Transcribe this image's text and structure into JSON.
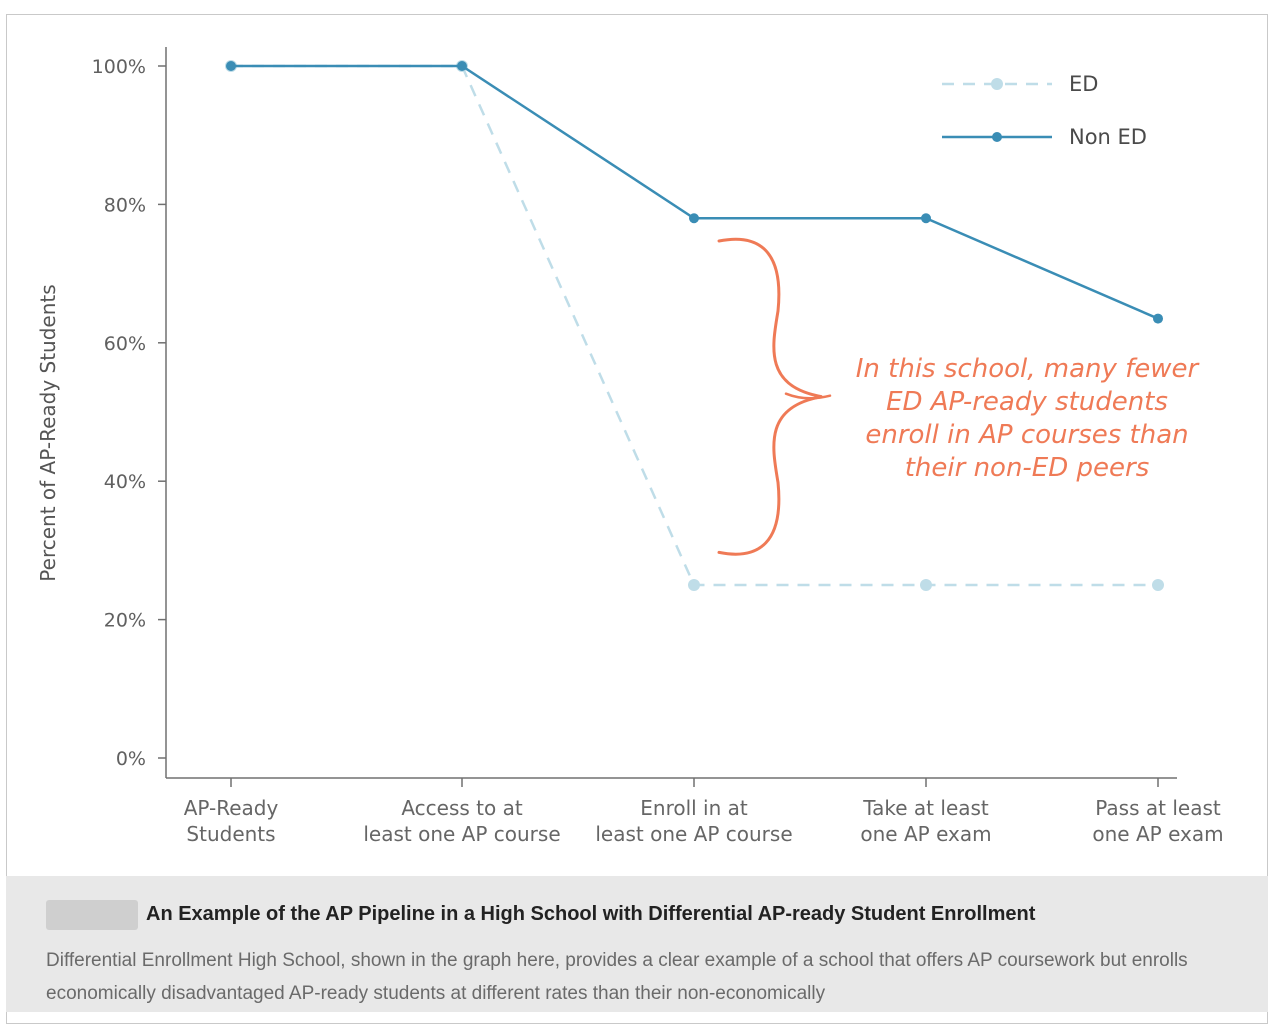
{
  "chart_data": {
    "type": "line",
    "categories": [
      [
        "AP-Ready",
        "Students"
      ],
      [
        "Access to at",
        "least one AP course"
      ],
      [
        "Enroll in at",
        "least one AP course"
      ],
      [
        "Take at least",
        "one AP exam"
      ],
      [
        "Pass at least",
        "one AP exam"
      ]
    ],
    "series": [
      {
        "name": "ED",
        "values": [
          100,
          100,
          25,
          25,
          25
        ],
        "color": "#bfdde8",
        "style": "dashed"
      },
      {
        "name": "Non ED",
        "values": [
          100,
          100,
          78,
          78,
          63.5
        ],
        "color": "#3a8db5",
        "style": "solid"
      }
    ],
    "ylabel": "Percent of AP-Ready Students",
    "ylim": [
      0,
      100
    ],
    "yticks": [
      0,
      20,
      40,
      60,
      80,
      100
    ],
    "ytick_labels": [
      "0%",
      "20%",
      "40%",
      "60%",
      "80%",
      "100%"
    ],
    "grid": false,
    "legend": "top-right",
    "annotation": {
      "lines": [
        "In this school, many fewer",
        "ED AP-ready students",
        "enroll in AP courses than",
        "their non-ED peers"
      ],
      "color": "#ef7a56",
      "bracket_range": [
        30,
        75
      ]
    }
  },
  "caption": {
    "title": "An Example of the AP Pipeline in a High School with Differential AP-ready Student Enrollment",
    "body": "Differential Enrollment High School, shown in the graph here, provides a clear example of a school that offers AP coursework but enrolls economically disadvantaged AP-ready students at different rates than their non-economically"
  }
}
